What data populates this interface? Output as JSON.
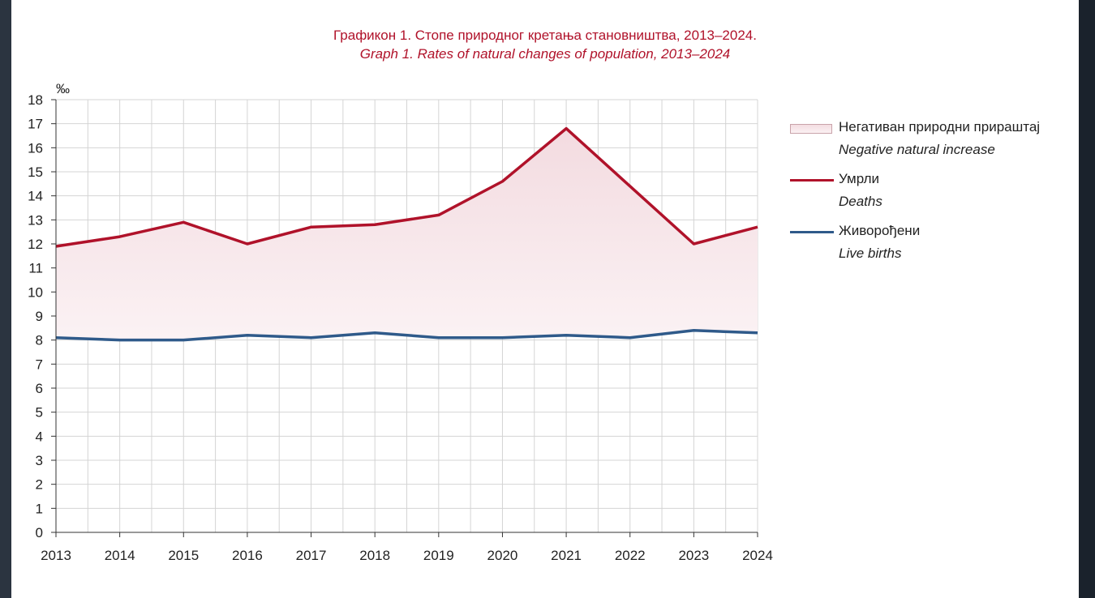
{
  "chart_data": {
    "type": "area",
    "title": "Графикон 1. Стопе природног кретања становништва, 2013–2024.",
    "subtitle": "Graph 1. Rates of natural changes of population, 2013–2024",
    "ylabel": "‰",
    "xlabel": "",
    "ylim": [
      0,
      18
    ],
    "yticks": [
      0,
      1,
      2,
      3,
      4,
      5,
      6,
      7,
      8,
      9,
      10,
      11,
      12,
      13,
      14,
      15,
      16,
      17,
      18
    ],
    "grid": true,
    "legend_position": "right",
    "categories": [
      "2013",
      "2014",
      "2015",
      "2016",
      "2017",
      "2018",
      "2019",
      "2020",
      "2021",
      "2022",
      "2023",
      "2024"
    ],
    "series": [
      {
        "name": "Умрли",
        "name_en": "Deaths",
        "color": "#b0122a",
        "values": [
          11.9,
          12.3,
          12.9,
          12.0,
          12.7,
          12.8,
          13.2,
          14.6,
          16.8,
          14.4,
          12.0,
          12.7
        ]
      },
      {
        "name": "Живорођени",
        "name_en": "Live births",
        "color": "#2f5a8a",
        "values": [
          8.1,
          8.0,
          8.0,
          8.2,
          8.1,
          8.3,
          8.1,
          8.1,
          8.2,
          8.1,
          8.4,
          8.3
        ]
      }
    ],
    "area": {
      "name": "Негативан природни прираштај",
      "name_en": "Negative natural increase",
      "fill_color": "#f6e3e6"
    }
  }
}
